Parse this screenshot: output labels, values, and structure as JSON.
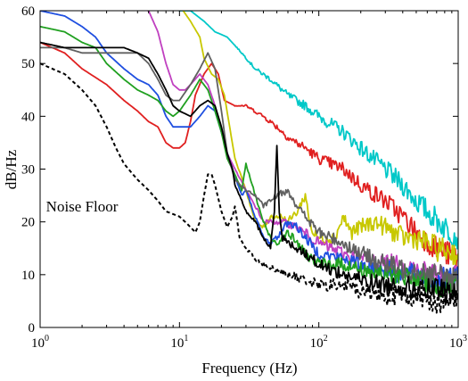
{
  "chart_data": {
    "type": "line",
    "title": "",
    "xlabel": "Frequency (Hz)",
    "ylabel": "dB/Hz",
    "xscale": "log",
    "xlim": [
      1,
      1000
    ],
    "ylim": [
      0,
      60
    ],
    "x_ticks": [
      {
        "base": "10",
        "exp": "0",
        "value": 1
      },
      {
        "base": "10",
        "exp": "1",
        "value": 10
      },
      {
        "base": "10",
        "exp": "2",
        "value": 100
      },
      {
        "base": "10",
        "exp": "3",
        "value": 1000
      }
    ],
    "y_ticks": [
      "0",
      "10",
      "20",
      "30",
      "40",
      "50",
      "60"
    ],
    "grid": false,
    "annotations": [
      {
        "text": "Noise Floor",
        "x": 2,
        "y": 22
      }
    ],
    "series": [
      {
        "color": "#00c8c8",
        "style": "solid",
        "points": [
          [
            1,
            61
          ],
          [
            6,
            61
          ],
          [
            8,
            61
          ],
          [
            10,
            60
          ],
          [
            12,
            60
          ],
          [
            15,
            58
          ],
          [
            18,
            56
          ],
          [
            22,
            55
          ],
          [
            28,
            52
          ],
          [
            35,
            49
          ],
          [
            45,
            47
          ],
          [
            60,
            44
          ],
          [
            80,
            42
          ],
          [
            100,
            40
          ],
          [
            150,
            37
          ],
          [
            200,
            34
          ],
          [
            300,
            30
          ],
          [
            400,
            27
          ],
          [
            500,
            24
          ],
          [
            600,
            22
          ],
          [
            800,
            19
          ],
          [
            1000,
            17
          ]
        ]
      },
      {
        "color": "#e02020",
        "style": "solid",
        "points": [
          [
            1,
            54
          ],
          [
            1.5,
            52
          ],
          [
            2,
            49
          ],
          [
            3,
            46
          ],
          [
            4,
            43
          ],
          [
            5,
            41
          ],
          [
            6,
            39
          ],
          [
            7,
            38
          ],
          [
            8,
            35
          ],
          [
            9,
            34
          ],
          [
            10,
            34
          ],
          [
            11,
            35
          ],
          [
            12,
            39
          ],
          [
            13,
            44
          ],
          [
            15,
            48
          ],
          [
            17,
            50
          ],
          [
            19,
            48
          ],
          [
            21,
            43
          ],
          [
            25,
            42
          ],
          [
            30,
            42
          ],
          [
            40,
            40
          ],
          [
            50,
            38
          ],
          [
            60,
            36
          ],
          [
            80,
            34
          ],
          [
            100,
            32
          ],
          [
            150,
            30
          ],
          [
            200,
            27
          ],
          [
            300,
            24
          ],
          [
            400,
            21
          ],
          [
            500,
            18
          ],
          [
            700,
            15
          ],
          [
            1000,
            13
          ]
        ]
      },
      {
        "color": "#c8c800",
        "style": "solid",
        "points": [
          [
            1,
            61
          ],
          [
            10,
            61
          ],
          [
            12,
            58
          ],
          [
            14,
            55
          ],
          [
            15,
            51
          ],
          [
            17,
            48
          ],
          [
            19,
            47
          ],
          [
            21,
            44
          ],
          [
            25,
            32
          ],
          [
            30,
            26
          ],
          [
            35,
            20
          ],
          [
            40,
            19
          ],
          [
            45,
            21
          ],
          [
            55,
            21
          ],
          [
            60,
            20
          ],
          [
            70,
            22
          ],
          [
            80,
            25
          ],
          [
            85,
            21
          ],
          [
            90,
            18
          ],
          [
            100,
            17
          ],
          [
            130,
            17
          ],
          [
            150,
            21
          ],
          [
            170,
            18
          ],
          [
            200,
            19
          ],
          [
            250,
            20
          ],
          [
            300,
            19
          ],
          [
            400,
            17
          ],
          [
            500,
            17
          ],
          [
            700,
            15
          ],
          [
            1000,
            14
          ]
        ]
      },
      {
        "color": "#c040c0",
        "style": "solid",
        "points": [
          [
            1,
            61
          ],
          [
            4,
            61
          ],
          [
            6,
            60
          ],
          [
            7,
            56
          ],
          [
            8,
            50
          ],
          [
            9,
            46
          ],
          [
            10,
            45
          ],
          [
            11,
            45
          ],
          [
            12,
            46
          ],
          [
            14,
            48
          ],
          [
            16,
            46
          ],
          [
            18,
            42
          ],
          [
            20,
            37
          ],
          [
            22,
            33
          ],
          [
            25,
            30
          ],
          [
            30,
            26
          ],
          [
            35,
            23
          ],
          [
            40,
            20
          ],
          [
            45,
            20
          ],
          [
            55,
            20
          ],
          [
            70,
            19
          ],
          [
            100,
            16
          ],
          [
            150,
            14
          ],
          [
            200,
            13
          ],
          [
            300,
            12
          ],
          [
            400,
            12
          ],
          [
            500,
            11
          ],
          [
            700,
            10
          ],
          [
            1000,
            10
          ]
        ]
      },
      {
        "color": "#1f4fe0",
        "style": "solid",
        "points": [
          [
            1,
            60
          ],
          [
            1.5,
            59
          ],
          [
            2,
            57
          ],
          [
            2.5,
            55
          ],
          [
            3,
            52
          ],
          [
            4,
            49
          ],
          [
            5,
            47
          ],
          [
            6,
            46
          ],
          [
            7,
            44
          ],
          [
            8,
            40
          ],
          [
            9,
            38
          ],
          [
            10,
            38
          ],
          [
            12,
            38
          ],
          [
            14,
            40
          ],
          [
            16,
            42
          ],
          [
            18,
            41
          ],
          [
            20,
            37
          ],
          [
            22,
            33
          ],
          [
            24,
            30
          ],
          [
            28,
            25
          ],
          [
            30,
            26
          ],
          [
            35,
            21
          ],
          [
            40,
            17
          ],
          [
            45,
            16
          ],
          [
            50,
            17
          ],
          [
            60,
            20
          ],
          [
            70,
            19
          ],
          [
            80,
            17
          ],
          [
            100,
            14
          ],
          [
            150,
            13
          ],
          [
            200,
            12
          ],
          [
            300,
            11
          ],
          [
            400,
            10
          ],
          [
            500,
            10
          ],
          [
            700,
            9
          ],
          [
            1000,
            9
          ]
        ]
      },
      {
        "color": "#20a020",
        "style": "solid",
        "points": [
          [
            1,
            57
          ],
          [
            1.5,
            56
          ],
          [
            2,
            54
          ],
          [
            2.5,
            53
          ],
          [
            3,
            50
          ],
          [
            4,
            47
          ],
          [
            5,
            45
          ],
          [
            6,
            44
          ],
          [
            7,
            43
          ],
          [
            8,
            41
          ],
          [
            9,
            40
          ],
          [
            10,
            41
          ],
          [
            12,
            44
          ],
          [
            14,
            47
          ],
          [
            16,
            45
          ],
          [
            18,
            41
          ],
          [
            20,
            37
          ],
          [
            22,
            32
          ],
          [
            25,
            29
          ],
          [
            28,
            26
          ],
          [
            30,
            31
          ],
          [
            35,
            25
          ],
          [
            40,
            20
          ],
          [
            45,
            17
          ],
          [
            50,
            16
          ],
          [
            60,
            18
          ],
          [
            70,
            16
          ],
          [
            80,
            14
          ],
          [
            100,
            12
          ],
          [
            150,
            12
          ],
          [
            200,
            11
          ],
          [
            300,
            10
          ],
          [
            400,
            10
          ],
          [
            500,
            9
          ],
          [
            700,
            8
          ],
          [
            1000,
            8
          ]
        ]
      },
      {
        "color": "#606060",
        "style": "solid",
        "points": [
          [
            1,
            53
          ],
          [
            1.5,
            53
          ],
          [
            2,
            52
          ],
          [
            3,
            52
          ],
          [
            4,
            52
          ],
          [
            5,
            52
          ],
          [
            6,
            50
          ],
          [
            7,
            47
          ],
          [
            8,
            44
          ],
          [
            9,
            43
          ],
          [
            10,
            43
          ],
          [
            12,
            46
          ],
          [
            14,
            49
          ],
          [
            16,
            52
          ],
          [
            18,
            49
          ],
          [
            20,
            41
          ],
          [
            22,
            33
          ],
          [
            25,
            28
          ],
          [
            30,
            26
          ],
          [
            35,
            25
          ],
          [
            40,
            23
          ],
          [
            45,
            24
          ],
          [
            50,
            25
          ],
          [
            60,
            26
          ],
          [
            70,
            23
          ],
          [
            80,
            21
          ],
          [
            100,
            18
          ],
          [
            150,
            16
          ],
          [
            200,
            14
          ],
          [
            300,
            12
          ],
          [
            400,
            11
          ],
          [
            500,
            11
          ],
          [
            700,
            10
          ],
          [
            1000,
            9
          ]
        ]
      },
      {
        "color": "#000000",
        "style": "solid",
        "points": [
          [
            1,
            54
          ],
          [
            1.5,
            53
          ],
          [
            2,
            53
          ],
          [
            3,
            53
          ],
          [
            4,
            53
          ],
          [
            5,
            52
          ],
          [
            6,
            51
          ],
          [
            7,
            48
          ],
          [
            8,
            45
          ],
          [
            9,
            42
          ],
          [
            10,
            41
          ],
          [
            12,
            40
          ],
          [
            14,
            42
          ],
          [
            16,
            43
          ],
          [
            18,
            42
          ],
          [
            20,
            38
          ],
          [
            22,
            33
          ],
          [
            24,
            30
          ],
          [
            25,
            27
          ],
          [
            28,
            24
          ],
          [
            30,
            22
          ],
          [
            35,
            20
          ],
          [
            40,
            17
          ],
          [
            45,
            15
          ],
          [
            48,
            22
          ],
          [
            50,
            35
          ],
          [
            52,
            22
          ],
          [
            55,
            17
          ],
          [
            60,
            16
          ],
          [
            70,
            15
          ],
          [
            80,
            14
          ],
          [
            100,
            12
          ],
          [
            150,
            10
          ],
          [
            200,
            9
          ],
          [
            300,
            8
          ],
          [
            400,
            8
          ],
          [
            500,
            7
          ],
          [
            700,
            7
          ],
          [
            1000,
            6
          ]
        ]
      },
      {
        "color": "#000000",
        "style": "dashed",
        "points": [
          [
            1,
            50
          ],
          [
            1.5,
            48
          ],
          [
            2,
            45
          ],
          [
            2.5,
            42
          ],
          [
            3,
            38
          ],
          [
            3.5,
            34
          ],
          [
            4,
            31
          ],
          [
            5,
            28
          ],
          [
            6,
            26
          ],
          [
            7,
            24
          ],
          [
            8,
            22
          ],
          [
            10,
            21
          ],
          [
            11,
            20
          ],
          [
            12,
            19
          ],
          [
            13,
            18
          ],
          [
            14,
            20
          ],
          [
            15,
            25
          ],
          [
            16,
            29
          ],
          [
            17,
            29
          ],
          [
            18,
            27
          ],
          [
            20,
            22
          ],
          [
            22,
            19
          ],
          [
            24,
            21
          ],
          [
            25,
            23
          ],
          [
            27,
            17
          ],
          [
            30,
            15
          ],
          [
            35,
            13
          ],
          [
            40,
            12
          ],
          [
            50,
            11
          ],
          [
            60,
            10
          ],
          [
            80,
            9
          ],
          [
            100,
            8
          ],
          [
            150,
            8
          ],
          [
            200,
            7
          ],
          [
            300,
            6
          ],
          [
            400,
            6
          ],
          [
            500,
            6
          ],
          [
            700,
            5
          ],
          [
            1000,
            5
          ]
        ]
      }
    ]
  }
}
